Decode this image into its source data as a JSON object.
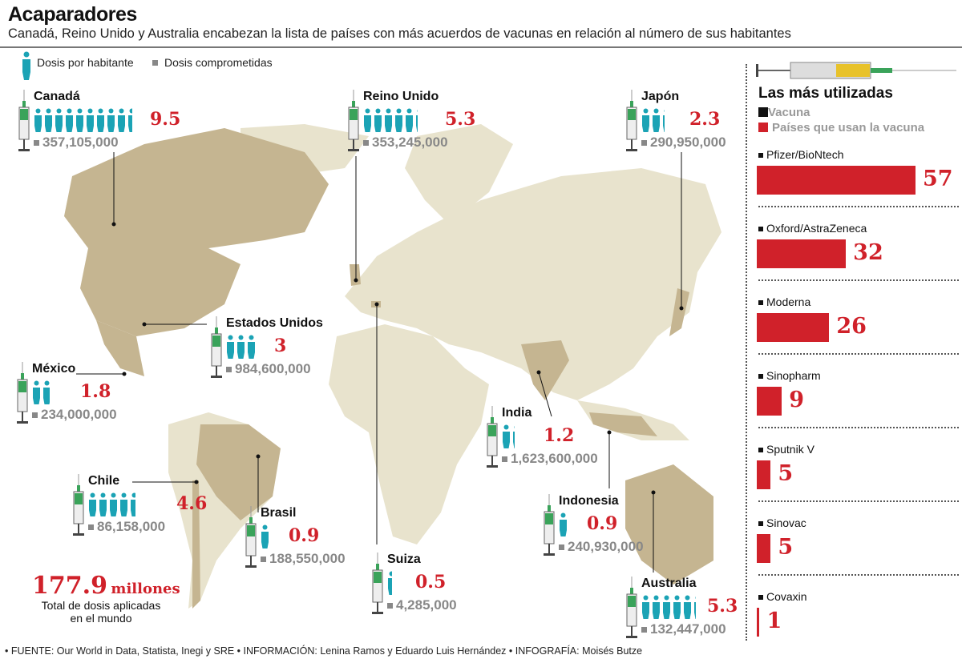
{
  "header": {
    "title": "Acaparadores",
    "subtitle": "Canadá, Reino Unido y Australia encabezan la lista de países con más acuerdos de vacunas en relación al número de sus habitantes"
  },
  "legend": {
    "per_capita": "Dosis por habitante",
    "committed": "Dosis comprometidas"
  },
  "colors": {
    "person": "#1ba3b5",
    "red": "#d0212a",
    "land": "#e8e3cd",
    "highlight": "#c5b591",
    "gray": "#888888"
  },
  "countries": [
    {
      "name": "Canadá",
      "per_capita": 9.5,
      "per_capita_label": "9.5",
      "doses": "357,105,000"
    },
    {
      "name": "Reino Unido",
      "per_capita": 5.3,
      "per_capita_label": "5.3",
      "doses": "353,245,000"
    },
    {
      "name": "Japón",
      "per_capita": 2.3,
      "per_capita_label": "2.3",
      "doses": "290,950,000"
    },
    {
      "name": "Estados Unidos",
      "per_capita": 3,
      "per_capita_label": "3",
      "doses": "984,600,000"
    },
    {
      "name": "México",
      "per_capita": 1.8,
      "per_capita_label": "1.8",
      "doses": "234,000,000"
    },
    {
      "name": "Chile",
      "per_capita": 4.6,
      "per_capita_label": "4.6",
      "doses": "86,158,000"
    },
    {
      "name": "Brasil",
      "per_capita": 0.9,
      "per_capita_label": "0.9",
      "doses": "188,550,000"
    },
    {
      "name": "Suiza",
      "per_capita": 0.5,
      "per_capita_label": "0.5",
      "doses": "4,285,000"
    },
    {
      "name": "India",
      "per_capita": 1.2,
      "per_capita_label": "1.2",
      "doses": "1,623,600,000"
    },
    {
      "name": "Indonesia",
      "per_capita": 0.9,
      "per_capita_label": "0.9",
      "doses": "240,930,000"
    },
    {
      "name": "Australia",
      "per_capita": 5.3,
      "per_capita_label": "5.3",
      "doses": "132,447,000"
    }
  ],
  "total": {
    "value": "177.9",
    "unit": "millones",
    "line1": "Total de dosis aplicadas",
    "line2": "en el mundo"
  },
  "chart_data": {
    "type": "bar",
    "title": "Las más utilizadas",
    "legend": [
      "Vacuna",
      "Países que usan la vacuna"
    ],
    "categories": [
      "Pfizer/BioNtech",
      "Oxford/AstraZeneca",
      "Moderna",
      "Sinopharm",
      "Sputnik V",
      "Sinovac",
      "Covaxin"
    ],
    "values": [
      57,
      32,
      26,
      9,
      5,
      5,
      1
    ],
    "xlim": [
      0,
      57
    ]
  },
  "footer": "• FUENTE: Our World in Data, Statista, Inegi y SRE • INFORMACIÓN: Lenina Ramos y Eduardo Luis Hernández • INFOGRAFÍA: Moisés Butze"
}
